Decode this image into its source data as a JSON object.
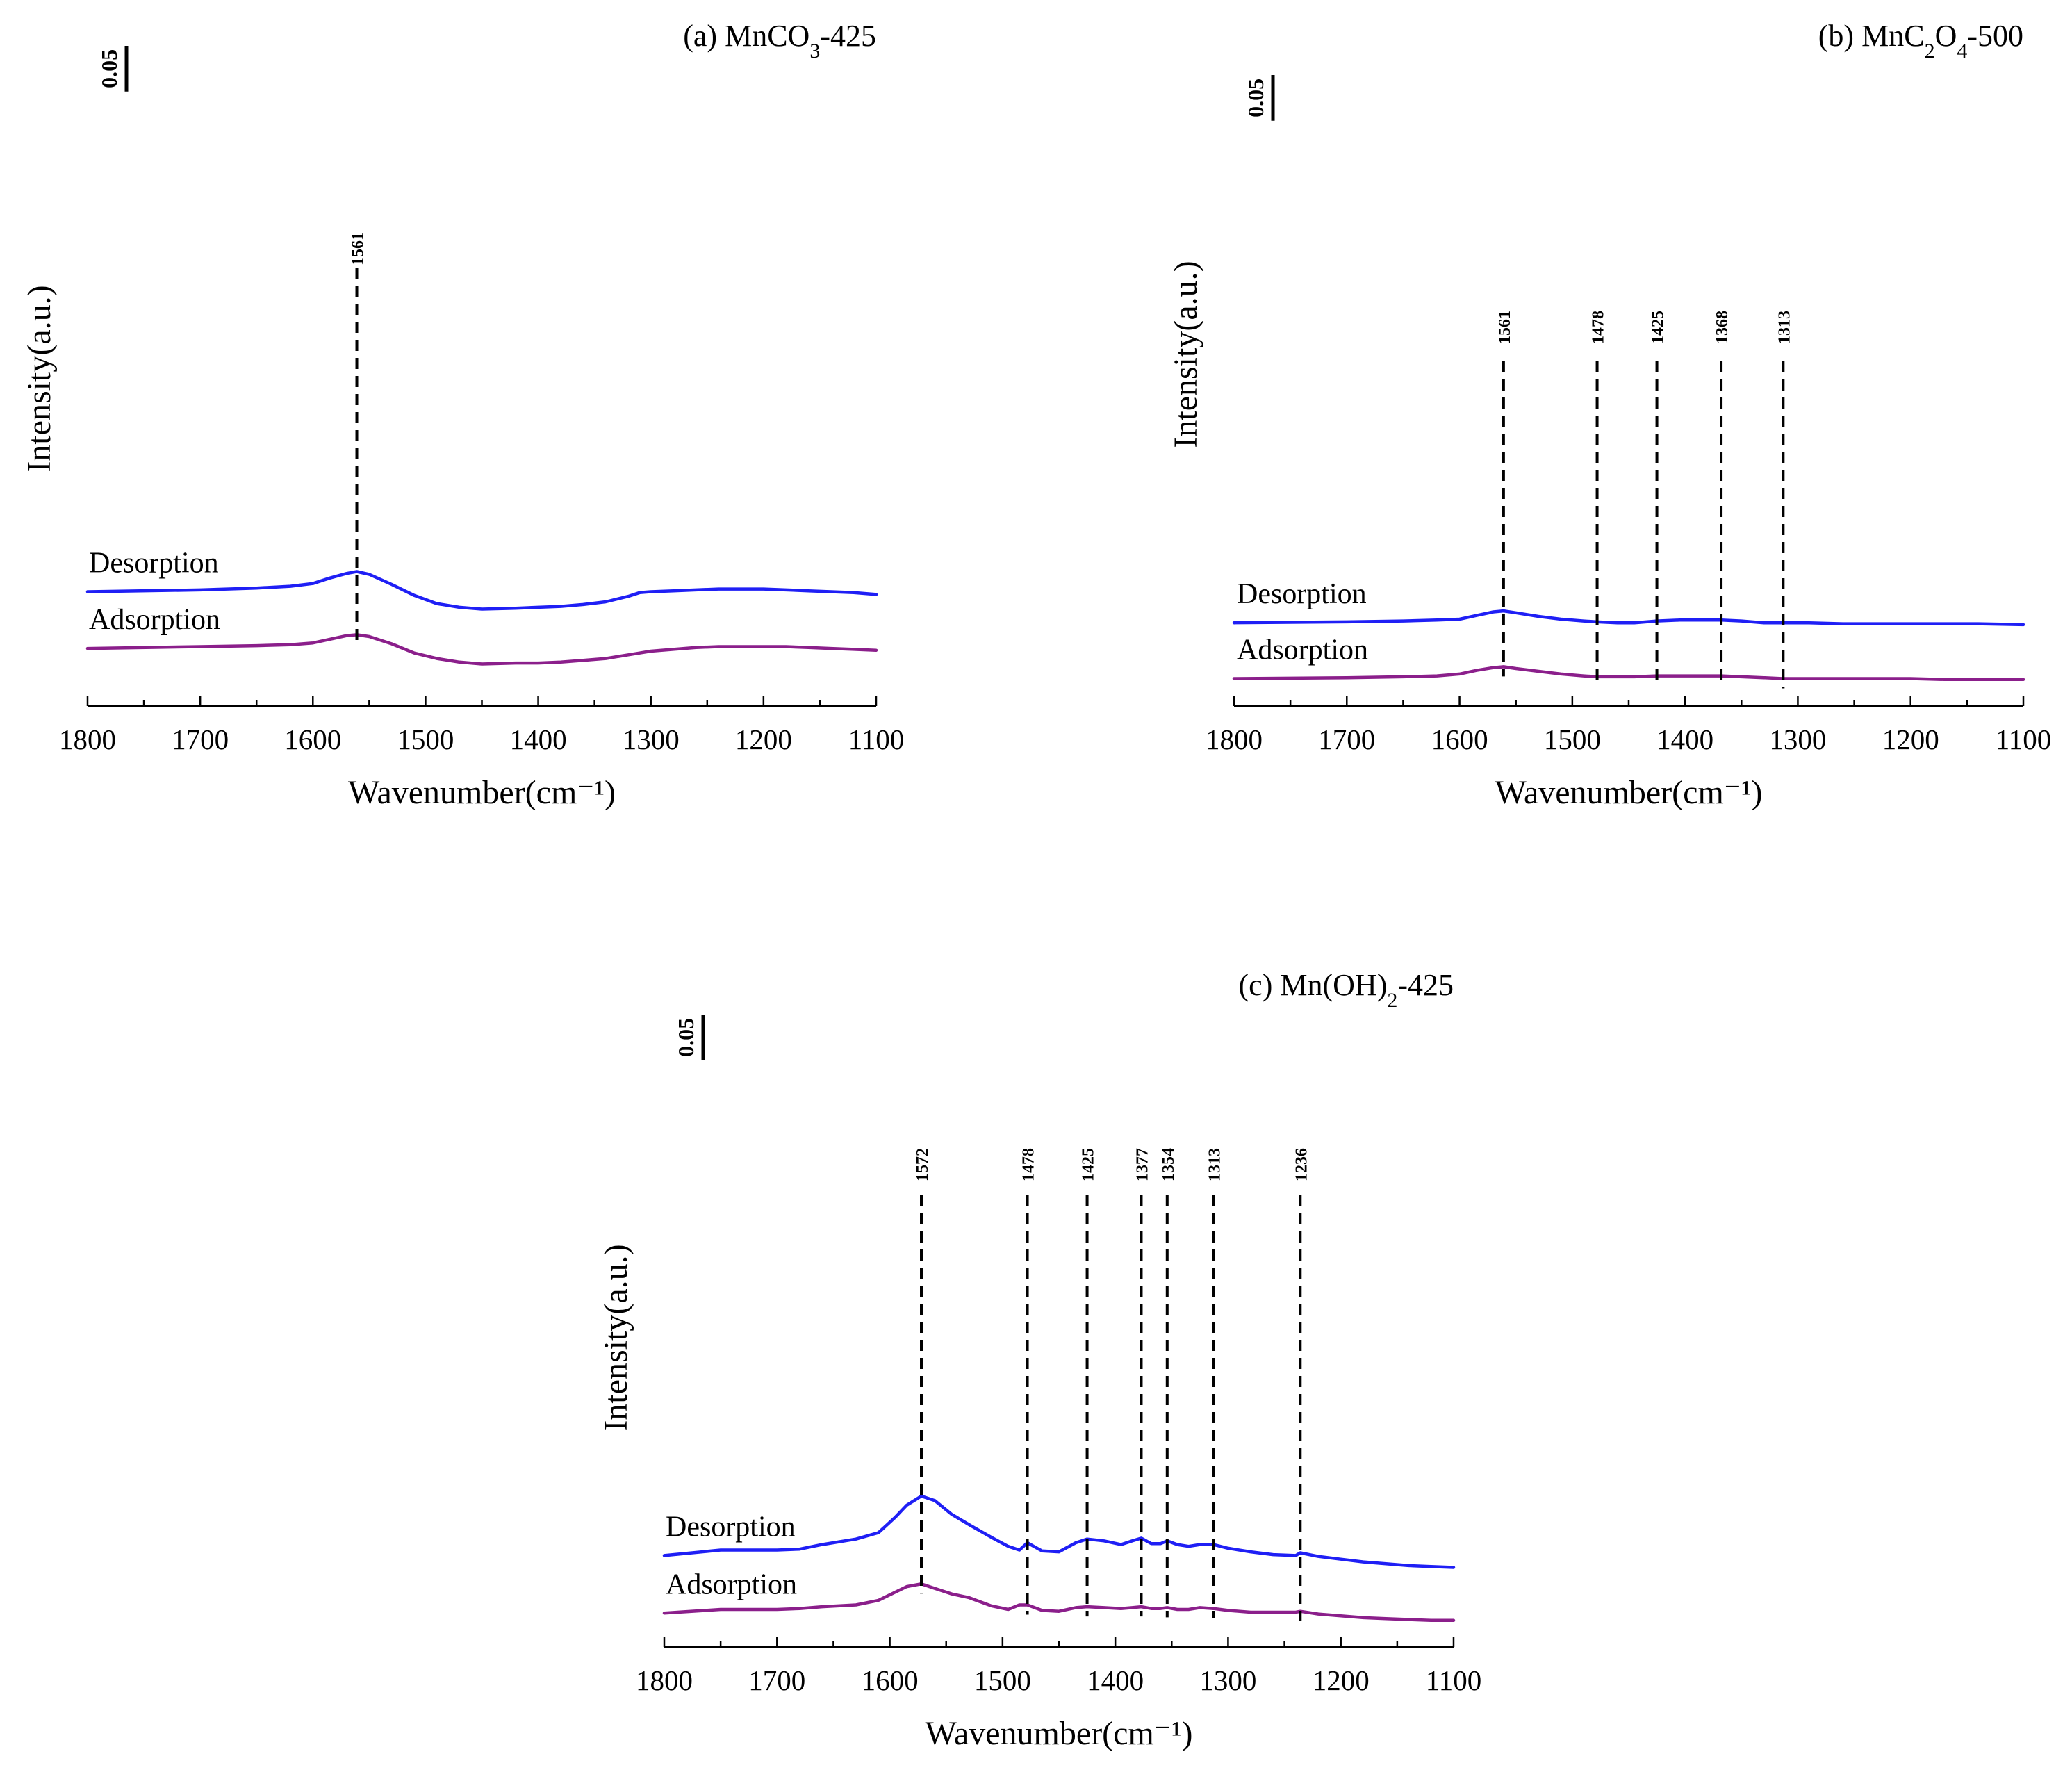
{
  "figure": {
    "type": "ftir_spectra_panels",
    "x_axis_title": "Wavenumber(cm⁻¹)",
    "y_axis_title": "Intensity(a.u.)",
    "series_colors": {
      "Desorption": "#1f1ff5",
      "Adsorption": "#8b1f8b"
    }
  },
  "chart_data": [
    {
      "panel": "a",
      "type": "line",
      "title_prefix": "(a) MnCO",
      "title_sub": "3",
      "title_suffix": "-425",
      "title": "(a) MnCO3-425",
      "xlabel": "Wavenumber(cm⁻¹)",
      "ylabel": "Intensity(a.u.)",
      "xlim": [
        1800,
        1100
      ],
      "ylim": [
        0.0,
        0.225
      ],
      "x_ticks": [
        "1800",
        "1700",
        "1600",
        "1500",
        "1400",
        "1300",
        "1200",
        "1100"
      ],
      "scale_bar_label": "0.05",
      "scale_bar_value": 0.05,
      "peak_labels": [
        "1561"
      ],
      "peaks": [
        1561
      ],
      "series": [
        {
          "name": "Desorption",
          "color": "#1f1ff5",
          "x": [
            1800,
            1700,
            1650,
            1620,
            1600,
            1585,
            1570,
            1561,
            1550,
            1530,
            1510,
            1490,
            1470,
            1450,
            1420,
            1400,
            1380,
            1360,
            1340,
            1320,
            1310,
            1300,
            1280,
            1260,
            1240,
            1220,
            1200,
            1180,
            1160,
            1140,
            1120,
            1100
          ],
          "values": [
            0.125,
            0.127,
            0.129,
            0.131,
            0.134,
            0.14,
            0.145,
            0.147,
            0.144,
            0.133,
            0.121,
            0.112,
            0.108,
            0.106,
            0.107,
            0.108,
            0.109,
            0.111,
            0.114,
            0.12,
            0.124,
            0.125,
            0.126,
            0.127,
            0.128,
            0.128,
            0.128,
            0.127,
            0.126,
            0.125,
            0.124,
            0.122
          ]
        },
        {
          "name": "Adsorption",
          "color": "#8b1f8b",
          "x": [
            1800,
            1700,
            1650,
            1620,
            1600,
            1585,
            1570,
            1561,
            1550,
            1530,
            1510,
            1490,
            1470,
            1450,
            1420,
            1400,
            1380,
            1360,
            1340,
            1320,
            1310,
            1300,
            1280,
            1260,
            1240,
            1220,
            1200,
            1180,
            1160,
            1140,
            1120,
            1100
          ],
          "values": [
            0.063,
            0.065,
            0.066,
            0.067,
            0.069,
            0.073,
            0.077,
            0.078,
            0.076,
            0.068,
            0.058,
            0.052,
            0.048,
            0.046,
            0.047,
            0.047,
            0.048,
            0.05,
            0.052,
            0.056,
            0.058,
            0.06,
            0.062,
            0.064,
            0.065,
            0.065,
            0.065,
            0.065,
            0.064,
            0.063,
            0.062,
            0.061
          ]
        }
      ]
    },
    {
      "panel": "b",
      "type": "line",
      "title_prefix": "(b) MnC",
      "title_sub": "2",
      "title_mid": "O",
      "title_sub2": "4",
      "title_suffix": "-500",
      "title": "(b) MnC2O4-500",
      "xlabel": "Wavenumber(cm⁻¹)",
      "ylabel": "Intensity(a.u.)",
      "xlim": [
        1800,
        1100
      ],
      "ylim": [
        0.0,
        0.225
      ],
      "x_ticks": [
        "1800",
        "1700",
        "1600",
        "1500",
        "1400",
        "1300",
        "1200",
        "1100"
      ],
      "scale_bar_label": "0.05",
      "scale_bar_value": 0.05,
      "peak_labels": [
        "1561",
        "1478",
        "1425",
        "1368",
        "1313"
      ],
      "peaks": [
        1561,
        1478,
        1425,
        1368,
        1313
      ],
      "series": [
        {
          "name": "Desorption",
          "color": "#1f1ff5",
          "x": [
            1800,
            1700,
            1650,
            1620,
            1600,
            1585,
            1570,
            1561,
            1550,
            1530,
            1510,
            1490,
            1478,
            1460,
            1445,
            1425,
            1405,
            1390,
            1368,
            1350,
            1330,
            1313,
            1290,
            1260,
            1230,
            1200,
            1170,
            1140,
            1100
          ],
          "values": [
            0.091,
            0.092,
            0.093,
            0.094,
            0.095,
            0.099,
            0.103,
            0.104,
            0.102,
            0.098,
            0.095,
            0.093,
            0.092,
            0.091,
            0.091,
            0.093,
            0.094,
            0.094,
            0.094,
            0.093,
            0.091,
            0.091,
            0.091,
            0.09,
            0.09,
            0.09,
            0.09,
            0.09,
            0.089
          ]
        },
        {
          "name": "Adsorption",
          "color": "#8b1f8b",
          "x": [
            1800,
            1700,
            1650,
            1620,
            1600,
            1585,
            1570,
            1561,
            1550,
            1530,
            1510,
            1490,
            1478,
            1460,
            1445,
            1425,
            1405,
            1390,
            1368,
            1350,
            1330,
            1313,
            1290,
            1260,
            1230,
            1200,
            1170,
            1140,
            1100
          ],
          "values": [
            0.03,
            0.031,
            0.032,
            0.033,
            0.035,
            0.039,
            0.042,
            0.043,
            0.041,
            0.038,
            0.035,
            0.033,
            0.032,
            0.032,
            0.032,
            0.033,
            0.033,
            0.033,
            0.033,
            0.032,
            0.031,
            0.03,
            0.03,
            0.03,
            0.03,
            0.03,
            0.029,
            0.029,
            0.029
          ]
        }
      ]
    },
    {
      "panel": "c",
      "type": "line",
      "title_prefix": "(c) Mn(OH)",
      "title_sub": "2",
      "title_suffix": "-425",
      "title": "(c) Mn(OH)2-425",
      "xlabel": "Wavenumber(cm⁻¹)",
      "ylabel": "Intensity(a.u.)",
      "xlim": [
        1800,
        1100
      ],
      "ylim": [
        0.0,
        0.225
      ],
      "x_ticks": [
        "1800",
        "1700",
        "1600",
        "1500",
        "1400",
        "1300",
        "1200",
        "1100"
      ],
      "scale_bar_label": "0.05",
      "scale_bar_value": 0.05,
      "peak_labels": [
        "1572",
        "1478",
        "1425",
        "1377",
        "1354",
        "1313",
        "1236"
      ],
      "peaks": [
        1572,
        1478,
        1425,
        1377,
        1354,
        1313,
        1236
      ],
      "series": [
        {
          "name": "Desorption",
          "color": "#1f1ff5",
          "x": [
            1800,
            1750,
            1700,
            1680,
            1660,
            1630,
            1610,
            1595,
            1585,
            1572,
            1560,
            1545,
            1530,
            1510,
            1495,
            1485,
            1478,
            1465,
            1450,
            1435,
            1425,
            1410,
            1395,
            1385,
            1377,
            1368,
            1360,
            1354,
            1345,
            1335,
            1325,
            1313,
            1300,
            1280,
            1260,
            1240,
            1236,
            1220,
            1200,
            1180,
            1160,
            1140,
            1120,
            1100
          ],
          "values": [
            0.1,
            0.106,
            0.106,
            0.107,
            0.112,
            0.118,
            0.125,
            0.142,
            0.155,
            0.165,
            0.16,
            0.145,
            0.134,
            0.12,
            0.11,
            0.106,
            0.114,
            0.105,
            0.104,
            0.114,
            0.118,
            0.116,
            0.112,
            0.116,
            0.119,
            0.113,
            0.113,
            0.116,
            0.112,
            0.11,
            0.112,
            0.112,
            0.108,
            0.104,
            0.101,
            0.1,
            0.103,
            0.099,
            0.096,
            0.093,
            0.091,
            0.089,
            0.088,
            0.087
          ]
        },
        {
          "name": "Adsorption",
          "color": "#8b1f8b",
          "x": [
            1800,
            1750,
            1700,
            1680,
            1660,
            1630,
            1610,
            1595,
            1585,
            1572,
            1560,
            1545,
            1530,
            1510,
            1495,
            1485,
            1478,
            1465,
            1450,
            1435,
            1425,
            1410,
            1395,
            1385,
            1377,
            1368,
            1360,
            1354,
            1345,
            1335,
            1325,
            1313,
            1300,
            1280,
            1260,
            1240,
            1236,
            1220,
            1200,
            1180,
            1160,
            1140,
            1120,
            1100
          ],
          "values": [
            0.037,
            0.041,
            0.041,
            0.042,
            0.044,
            0.046,
            0.051,
            0.06,
            0.066,
            0.069,
            0.064,
            0.058,
            0.054,
            0.045,
            0.041,
            0.046,
            0.046,
            0.04,
            0.039,
            0.043,
            0.044,
            0.043,
            0.042,
            0.043,
            0.044,
            0.042,
            0.042,
            0.043,
            0.041,
            0.041,
            0.043,
            0.042,
            0.04,
            0.038,
            0.038,
            0.038,
            0.039,
            0.036,
            0.034,
            0.032,
            0.031,
            0.03,
            0.029,
            0.029
          ]
        }
      ]
    }
  ]
}
